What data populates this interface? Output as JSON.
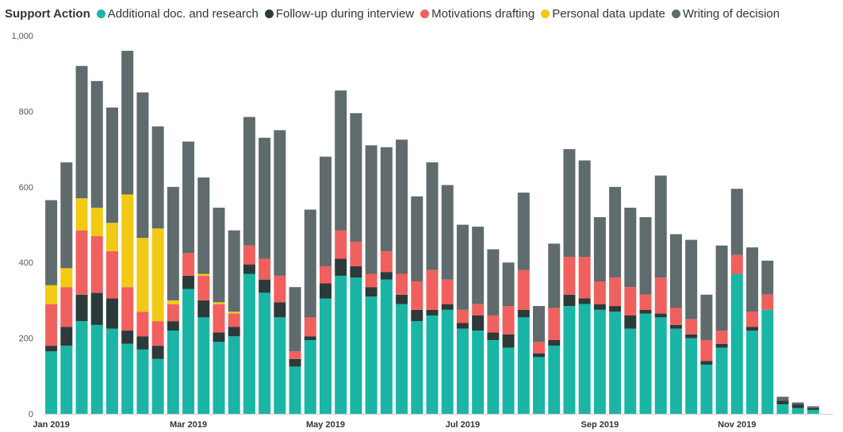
{
  "chart_data": {
    "type": "bar",
    "stacked": true,
    "legend_title": "Support Action",
    "legend_position": "top-left",
    "ylim": [
      0,
      1000
    ],
    "yticks": [
      0,
      200,
      400,
      600,
      800,
      1000
    ],
    "ytick_labels": [
      "0",
      "200",
      "400",
      "600",
      "800",
      "1,000"
    ],
    "grid": false,
    "xlabel": "",
    "ylabel": "",
    "x_tick_labels": [
      {
        "index": 0,
        "label": "Jan 2019"
      },
      {
        "index": 9,
        "label": "Mar 2019"
      },
      {
        "index": 18,
        "label": "May 2019"
      },
      {
        "index": 27,
        "label": "Jul 2019"
      },
      {
        "index": 36,
        "label": "Sep 2019"
      },
      {
        "index": 45,
        "label": "Nov 2019"
      }
    ],
    "series": [
      {
        "name": "Additional doc. and research",
        "color": "#1ab5a5",
        "values": [
          165,
          180,
          245,
          235,
          225,
          185,
          170,
          145,
          220,
          330,
          255,
          190,
          205,
          370,
          320,
          255,
          125,
          195,
          305,
          365,
          360,
          310,
          355,
          290,
          245,
          260,
          275,
          225,
          220,
          195,
          175,
          255,
          150,
          180,
          285,
          290,
          275,
          270,
          225,
          265,
          255,
          225,
          200,
          130,
          175,
          370,
          220,
          275,
          25,
          15,
          10
        ]
      },
      {
        "name": "Follow-up during interview",
        "color": "#2d3a3a",
        "values": [
          15,
          50,
          70,
          85,
          80,
          35,
          35,
          35,
          25,
          35,
          45,
          25,
          25,
          25,
          35,
          40,
          20,
          10,
          40,
          45,
          30,
          25,
          20,
          25,
          30,
          15,
          15,
          15,
          40,
          20,
          35,
          20,
          10,
          15,
          30,
          15,
          15,
          15,
          35,
          10,
          10,
          10,
          10,
          10,
          10,
          0,
          10,
          0,
          10,
          10,
          5
        ]
      },
      {
        "name": "Motivations drafting",
        "color": "#f0605e",
        "values": [
          110,
          105,
          170,
          150,
          125,
          115,
          65,
          65,
          45,
          60,
          65,
          75,
          35,
          50,
          55,
          70,
          20,
          50,
          45,
          75,
          65,
          35,
          55,
          55,
          75,
          105,
          65,
          35,
          30,
          45,
          75,
          105,
          30,
          85,
          100,
          110,
          60,
          75,
          75,
          40,
          95,
          45,
          40,
          55,
          35,
          50,
          40,
          40,
          0,
          0,
          0
        ]
      },
      {
        "name": "Personal data update",
        "color": "#f2c914",
        "values": [
          50,
          50,
          85,
          75,
          75,
          245,
          195,
          245,
          10,
          0,
          5,
          5,
          5,
          0,
          0,
          0,
          0,
          0,
          0,
          0,
          0,
          0,
          0,
          0,
          0,
          0,
          0,
          0,
          0,
          0,
          0,
          0,
          0,
          0,
          0,
          0,
          0,
          0,
          0,
          0,
          0,
          0,
          0,
          0,
          0,
          0,
          0,
          0,
          0,
          0,
          0
        ]
      },
      {
        "name": "Writing of decision",
        "color": "#5f6b6d",
        "values": [
          225,
          280,
          350,
          335,
          305,
          380,
          385,
          270,
          300,
          295,
          255,
          250,
          215,
          340,
          320,
          385,
          170,
          285,
          290,
          370,
          340,
          340,
          275,
          355,
          225,
          285,
          250,
          225,
          205,
          175,
          115,
          205,
          95,
          170,
          285,
          255,
          170,
          240,
          210,
          205,
          270,
          195,
          210,
          120,
          225,
          175,
          170,
          90,
          10,
          5,
          5
        ]
      }
    ]
  }
}
